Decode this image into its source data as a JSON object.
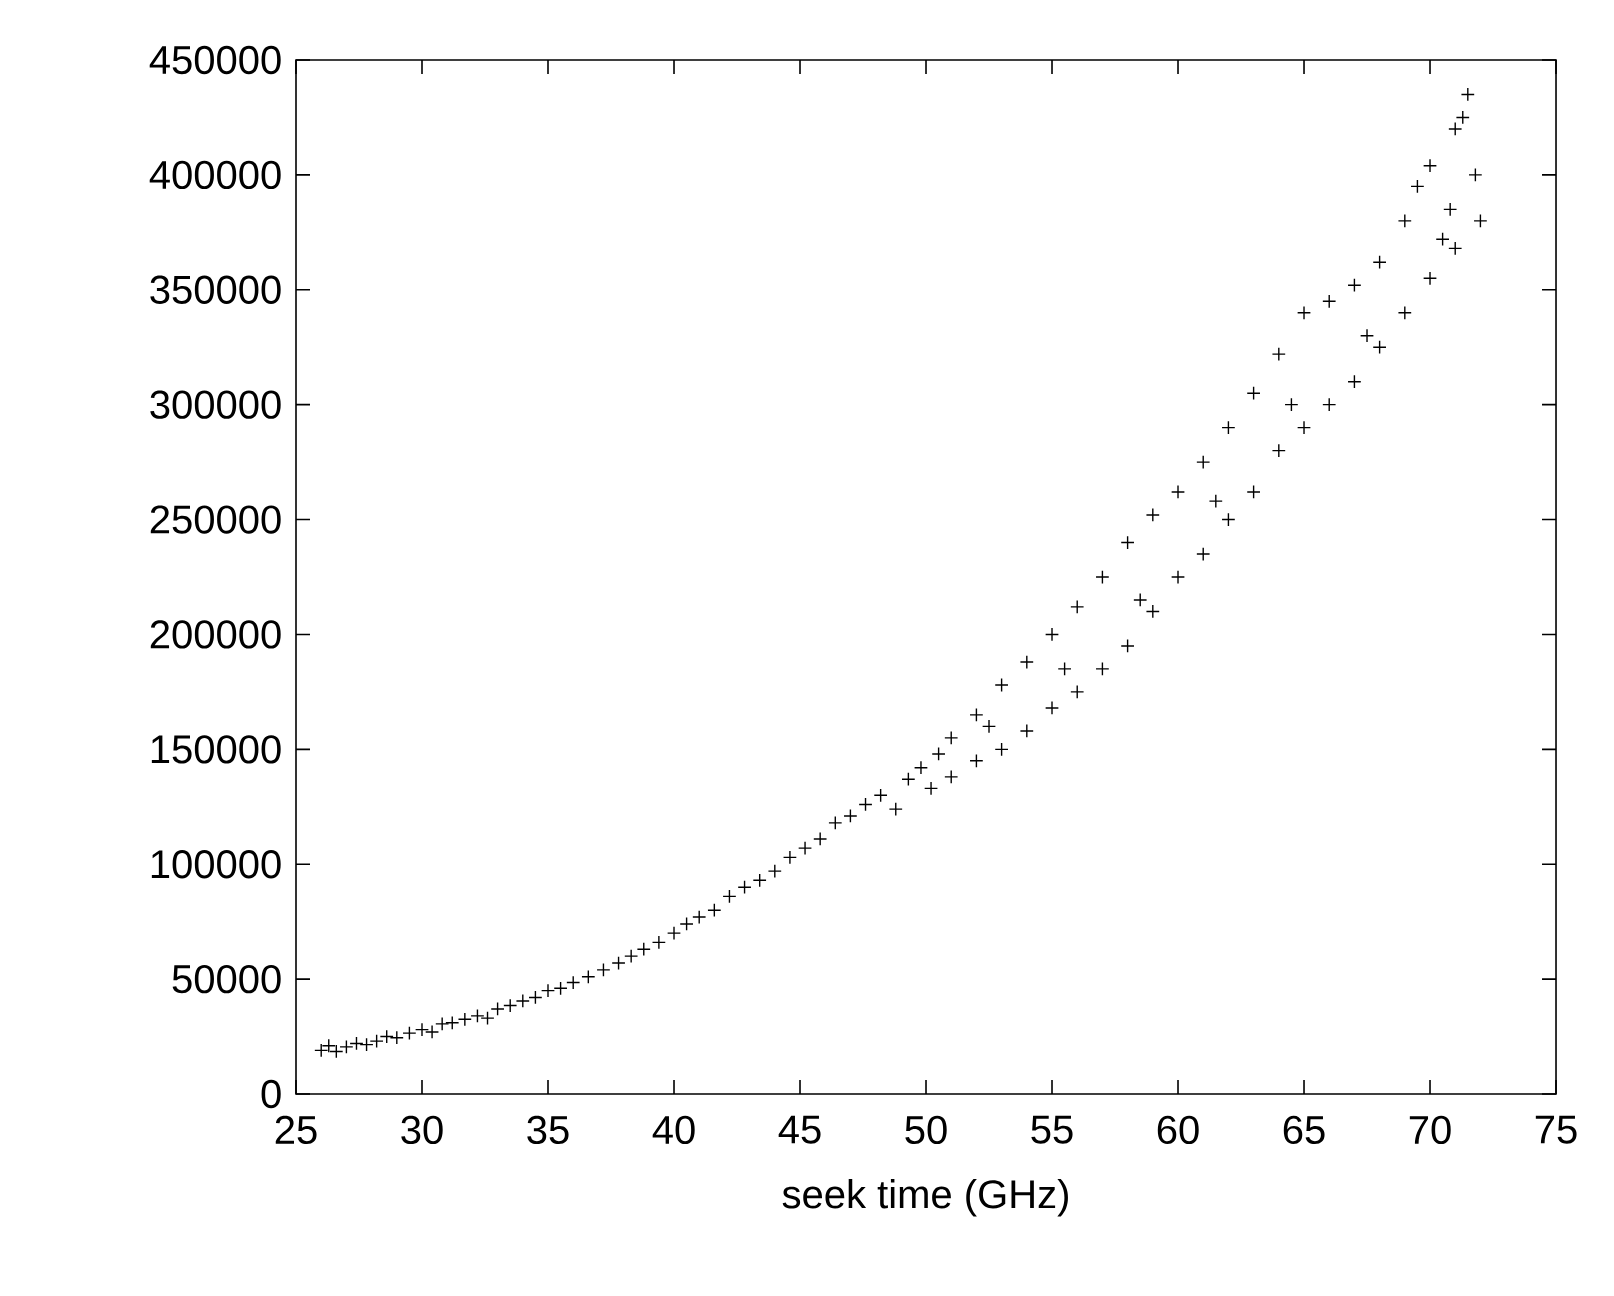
{
  "chart_data": {
    "type": "scatter",
    "xlabel": "seek time (GHz)",
    "xlim": [
      25,
      75
    ],
    "ylim": [
      0,
      450000
    ],
    "xticks": [
      25,
      30,
      35,
      40,
      45,
      50,
      55,
      60,
      65,
      70,
      75
    ],
    "yticks": [
      0,
      50000,
      100000,
      150000,
      200000,
      250000,
      300000,
      350000,
      400000,
      450000
    ],
    "marker": "cross",
    "series": [
      {
        "color": "#000000",
        "x": [
          26.0,
          26.3,
          26.6,
          27.0,
          27.4,
          27.8,
          28.2,
          28.6,
          29.0,
          29.5,
          30.0,
          30.4,
          30.8,
          31.2,
          31.7,
          32.2,
          32.6,
          33.0,
          33.5,
          34.0,
          34.5,
          35.0,
          35.5,
          36.0,
          36.6,
          37.2,
          37.8,
          38.3,
          38.8,
          39.4,
          40.0,
          40.5,
          41.0,
          41.6,
          42.2,
          42.8,
          43.4,
          44.0,
          44.6,
          45.2,
          45.8,
          46.4,
          47.0,
          47.6,
          48.2,
          48.8,
          49.3,
          49.8,
          50.2,
          50.5,
          51.0,
          52.0,
          53.0,
          54.0,
          55.0,
          56.0,
          57.0,
          58.0,
          59.0,
          60.0,
          61.0,
          62.0,
          63.0,
          64.0,
          65.0,
          66.0,
          67.0,
          68.0,
          69.0,
          69.5,
          70.0,
          70.8,
          71.0,
          71.5,
          71.3,
          51.0,
          52.0,
          53.0,
          54.0,
          55.0,
          56.0,
          57.0,
          58.0,
          59.0,
          60.0,
          61.0,
          62.0,
          63.0,
          64.0,
          65.0,
          66.0,
          67.0,
          68.0,
          69.0,
          70.0,
          71.0,
          72.0,
          52.5,
          55.5,
          58.5,
          61.5,
          64.5,
          67.5,
          70.5,
          71.8
        ],
        "values": [
          19000,
          21000,
          18500,
          20500,
          22000,
          21500,
          23000,
          25000,
          24500,
          26500,
          28000,
          27000,
          30500,
          31000,
          32500,
          34000,
          33000,
          37000,
          38500,
          40500,
          42000,
          45000,
          46000,
          48500,
          51000,
          54000,
          57000,
          60000,
          63000,
          66000,
          70000,
          74000,
          77000,
          80000,
          86000,
          90000,
          93000,
          97000,
          103000,
          107000,
          111000,
          118000,
          121000,
          126000,
          130000,
          124000,
          137000,
          142000,
          133000,
          148000,
          155000,
          165000,
          178000,
          188000,
          200000,
          212000,
          225000,
          240000,
          252000,
          262000,
          275000,
          290000,
          305000,
          322000,
          340000,
          345000,
          352000,
          362000,
          380000,
          395000,
          404000,
          385000,
          420000,
          435000,
          425000,
          138000,
          145000,
          150000,
          158000,
          168000,
          175000,
          185000,
          195000,
          210000,
          225000,
          235000,
          250000,
          262000,
          280000,
          290000,
          300000,
          310000,
          325000,
          340000,
          355000,
          368000,
          380000,
          160000,
          185000,
          215000,
          258000,
          300000,
          330000,
          372000,
          400000
        ]
      }
    ]
  }
}
